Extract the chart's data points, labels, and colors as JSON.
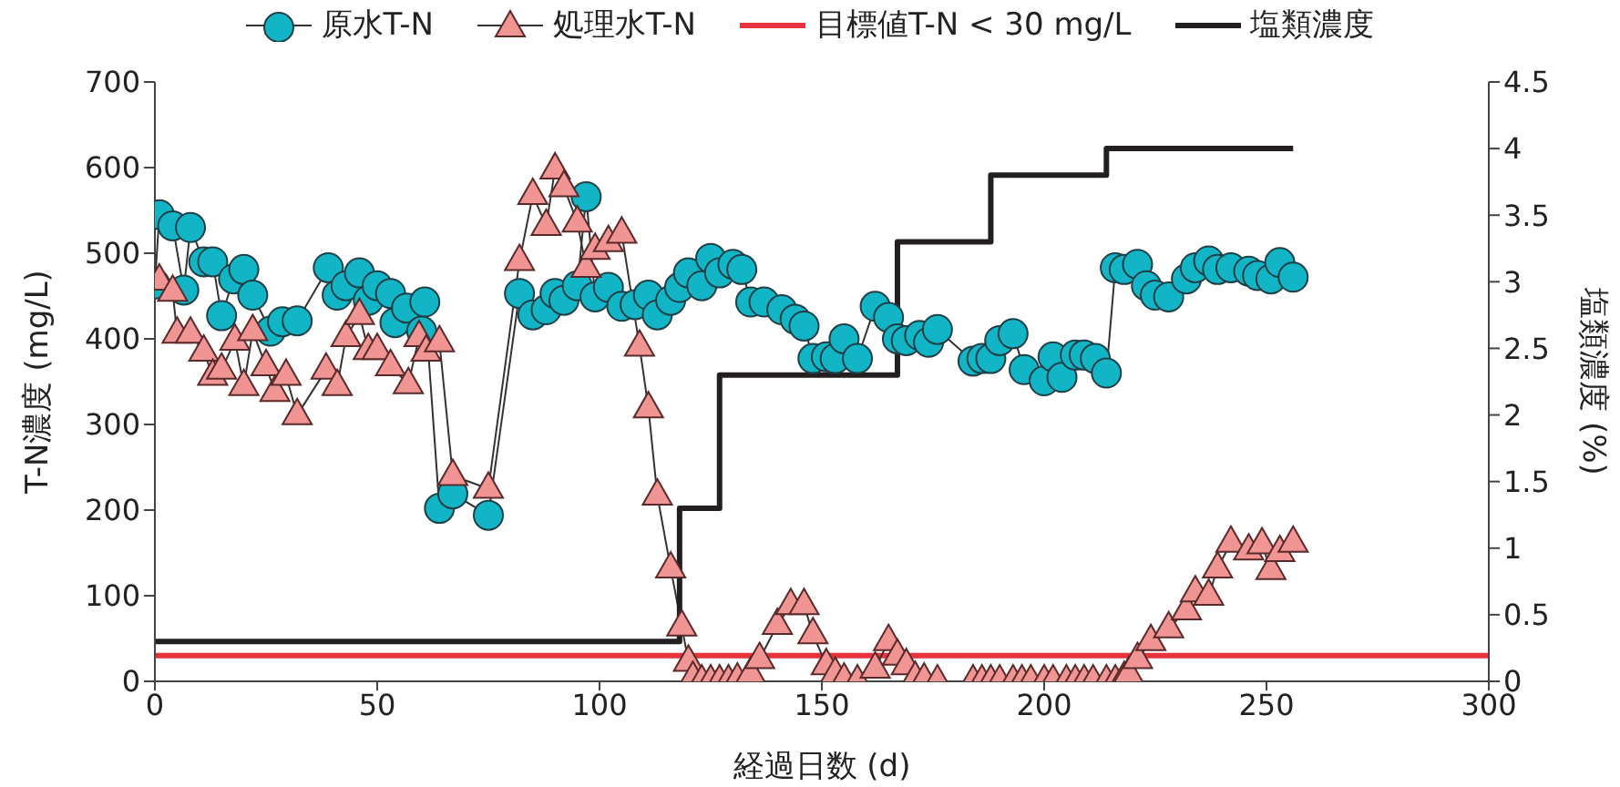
{
  "chart_data": {
    "type": "line",
    "xlabel": "経過日数 (d)",
    "ylabel": "T-N濃度 (mg/L)",
    "y2label": "塩類濃度 (%)",
    "xlim": [
      0,
      300
    ],
    "xticks": [
      0,
      50,
      100,
      150,
      200,
      250,
      300
    ],
    "ylim": [
      0,
      700
    ],
    "yticks": [
      0,
      100,
      200,
      300,
      400,
      500,
      600,
      700
    ],
    "y2lim": [
      0,
      4.5
    ],
    "y2ticks": [
      0,
      0.5,
      1,
      1.5,
      2,
      2.5,
      3,
      3.5,
      4,
      4.5
    ],
    "grid": false,
    "legend": "top",
    "line_style": "solid",
    "series": [
      {
        "name": "原水T-N",
        "marker": "circle",
        "color": "#12b5c6",
        "x": [
          0,
          1,
          4,
          6.5,
          8,
          11,
          13,
          15,
          17.7,
          20,
          22,
          26,
          28.7,
          32,
          39,
          41,
          43,
          46,
          48,
          50,
          53,
          54,
          56.6,
          60,
          60.7,
          64,
          67,
          75,
          82,
          85,
          88,
          90,
          92,
          95,
          97,
          99,
          102,
          105,
          108,
          111,
          113,
          116,
          118,
          120,
          123,
          125,
          127,
          130,
          132,
          134,
          137,
          141,
          144,
          146,
          148,
          151,
          153,
          155,
          158,
          162,
          165,
          167,
          169,
          172,
          174,
          176,
          184,
          186,
          188,
          190,
          193,
          195.5,
          200,
          202,
          204,
          207,
          209,
          211.5,
          214,
          216,
          218,
          221,
          223,
          225,
          228,
          232,
          234,
          237,
          239,
          242,
          246,
          248,
          251,
          253,
          256
        ],
        "values": [
          464,
          545,
          532,
          457,
          530,
          490,
          490,
          427,
          470,
          481,
          451,
          409,
          420,
          421,
          483,
          451,
          462,
          477,
          445,
          462,
          453,
          419,
          436,
          409,
          443,
          202,
          219,
          194,
          453,
          428,
          434,
          453,
          445,
          462,
          566,
          449,
          460,
          438,
          440,
          451,
          428,
          445,
          460,
          477,
          462,
          494,
          477,
          487,
          481,
          443,
          443,
          434,
          423,
          415,
          377,
          379,
          377,
          400,
          377,
          438,
          425,
          400,
          398,
          404,
          396,
          411,
          374,
          377,
          377,
          398,
          406,
          364,
          351,
          379,
          355,
          381,
          381,
          377,
          360,
          483,
          481,
          487,
          462,
          451,
          449,
          470,
          483,
          491,
          481,
          483,
          479,
          474,
          470,
          489,
          472
        ]
      },
      {
        "name": "処理水T-N",
        "marker": "triangle",
        "color": "#f09494",
        "x": [
          1,
          4,
          5,
          8,
          11,
          13,
          15,
          18,
          20,
          22,
          25,
          27,
          29.5,
          32,
          38.5,
          41,
          43,
          46,
          48,
          50,
          53,
          57,
          59.4,
          61,
          64,
          67,
          75,
          82,
          85,
          88,
          90,
          92,
          95,
          97,
          99,
          102,
          105,
          109,
          111,
          113,
          116,
          118.5,
          120,
          121,
          123,
          125,
          127,
          129,
          131,
          134,
          136,
          140,
          143,
          146,
          148,
          151,
          153,
          155,
          158,
          162,
          165,
          167,
          169,
          171,
          173,
          176,
          184,
          186,
          188,
          190,
          193,
          195,
          197,
          200,
          202,
          205,
          207,
          209,
          211,
          214,
          216,
          218,
          219,
          221,
          224,
          228,
          232,
          234,
          237,
          239,
          242,
          246,
          249,
          251,
          253,
          256
        ],
        "values": [
          468,
          455,
          406,
          406,
          385,
          357,
          364,
          398,
          345,
          409,
          368,
          338,
          357,
          311,
          364,
          345,
          402,
          428,
          387,
          387,
          368,
          347,
          402,
          385,
          396,
          240,
          225,
          491,
          568,
          532,
          598,
          577,
          536,
          483,
          504,
          513,
          523,
          391,
          319,
          217,
          132,
          64,
          23,
          4,
          0,
          0,
          0,
          0,
          2,
          9,
          26,
          66,
          89,
          89,
          55,
          19,
          9,
          2,
          0,
          15,
          47,
          30,
          19,
          4,
          2,
          0,
          0,
          0,
          0,
          0,
          0,
          0,
          0,
          0,
          0,
          0,
          0,
          0,
          0,
          0,
          0,
          4,
          9,
          26,
          47,
          62,
          83,
          104,
          100,
          132,
          162,
          153,
          160,
          130,
          151,
          162
        ]
      },
      {
        "name": "塩類濃度",
        "type": "step",
        "axis": "y2",
        "marker": "none",
        "color": "#231f20",
        "x": [
          0,
          118,
          127,
          167,
          188,
          214,
          256
        ],
        "values": [
          0.3,
          1.3,
          2.3,
          3.3,
          3.8,
          4,
          4
        ]
      }
    ],
    "ref_lines": [
      {
        "axis": "y",
        "value": 30,
        "label": "目標値T-N < 30 mg/L",
        "color": "#e8323c",
        "line_style": "solid"
      }
    ]
  }
}
